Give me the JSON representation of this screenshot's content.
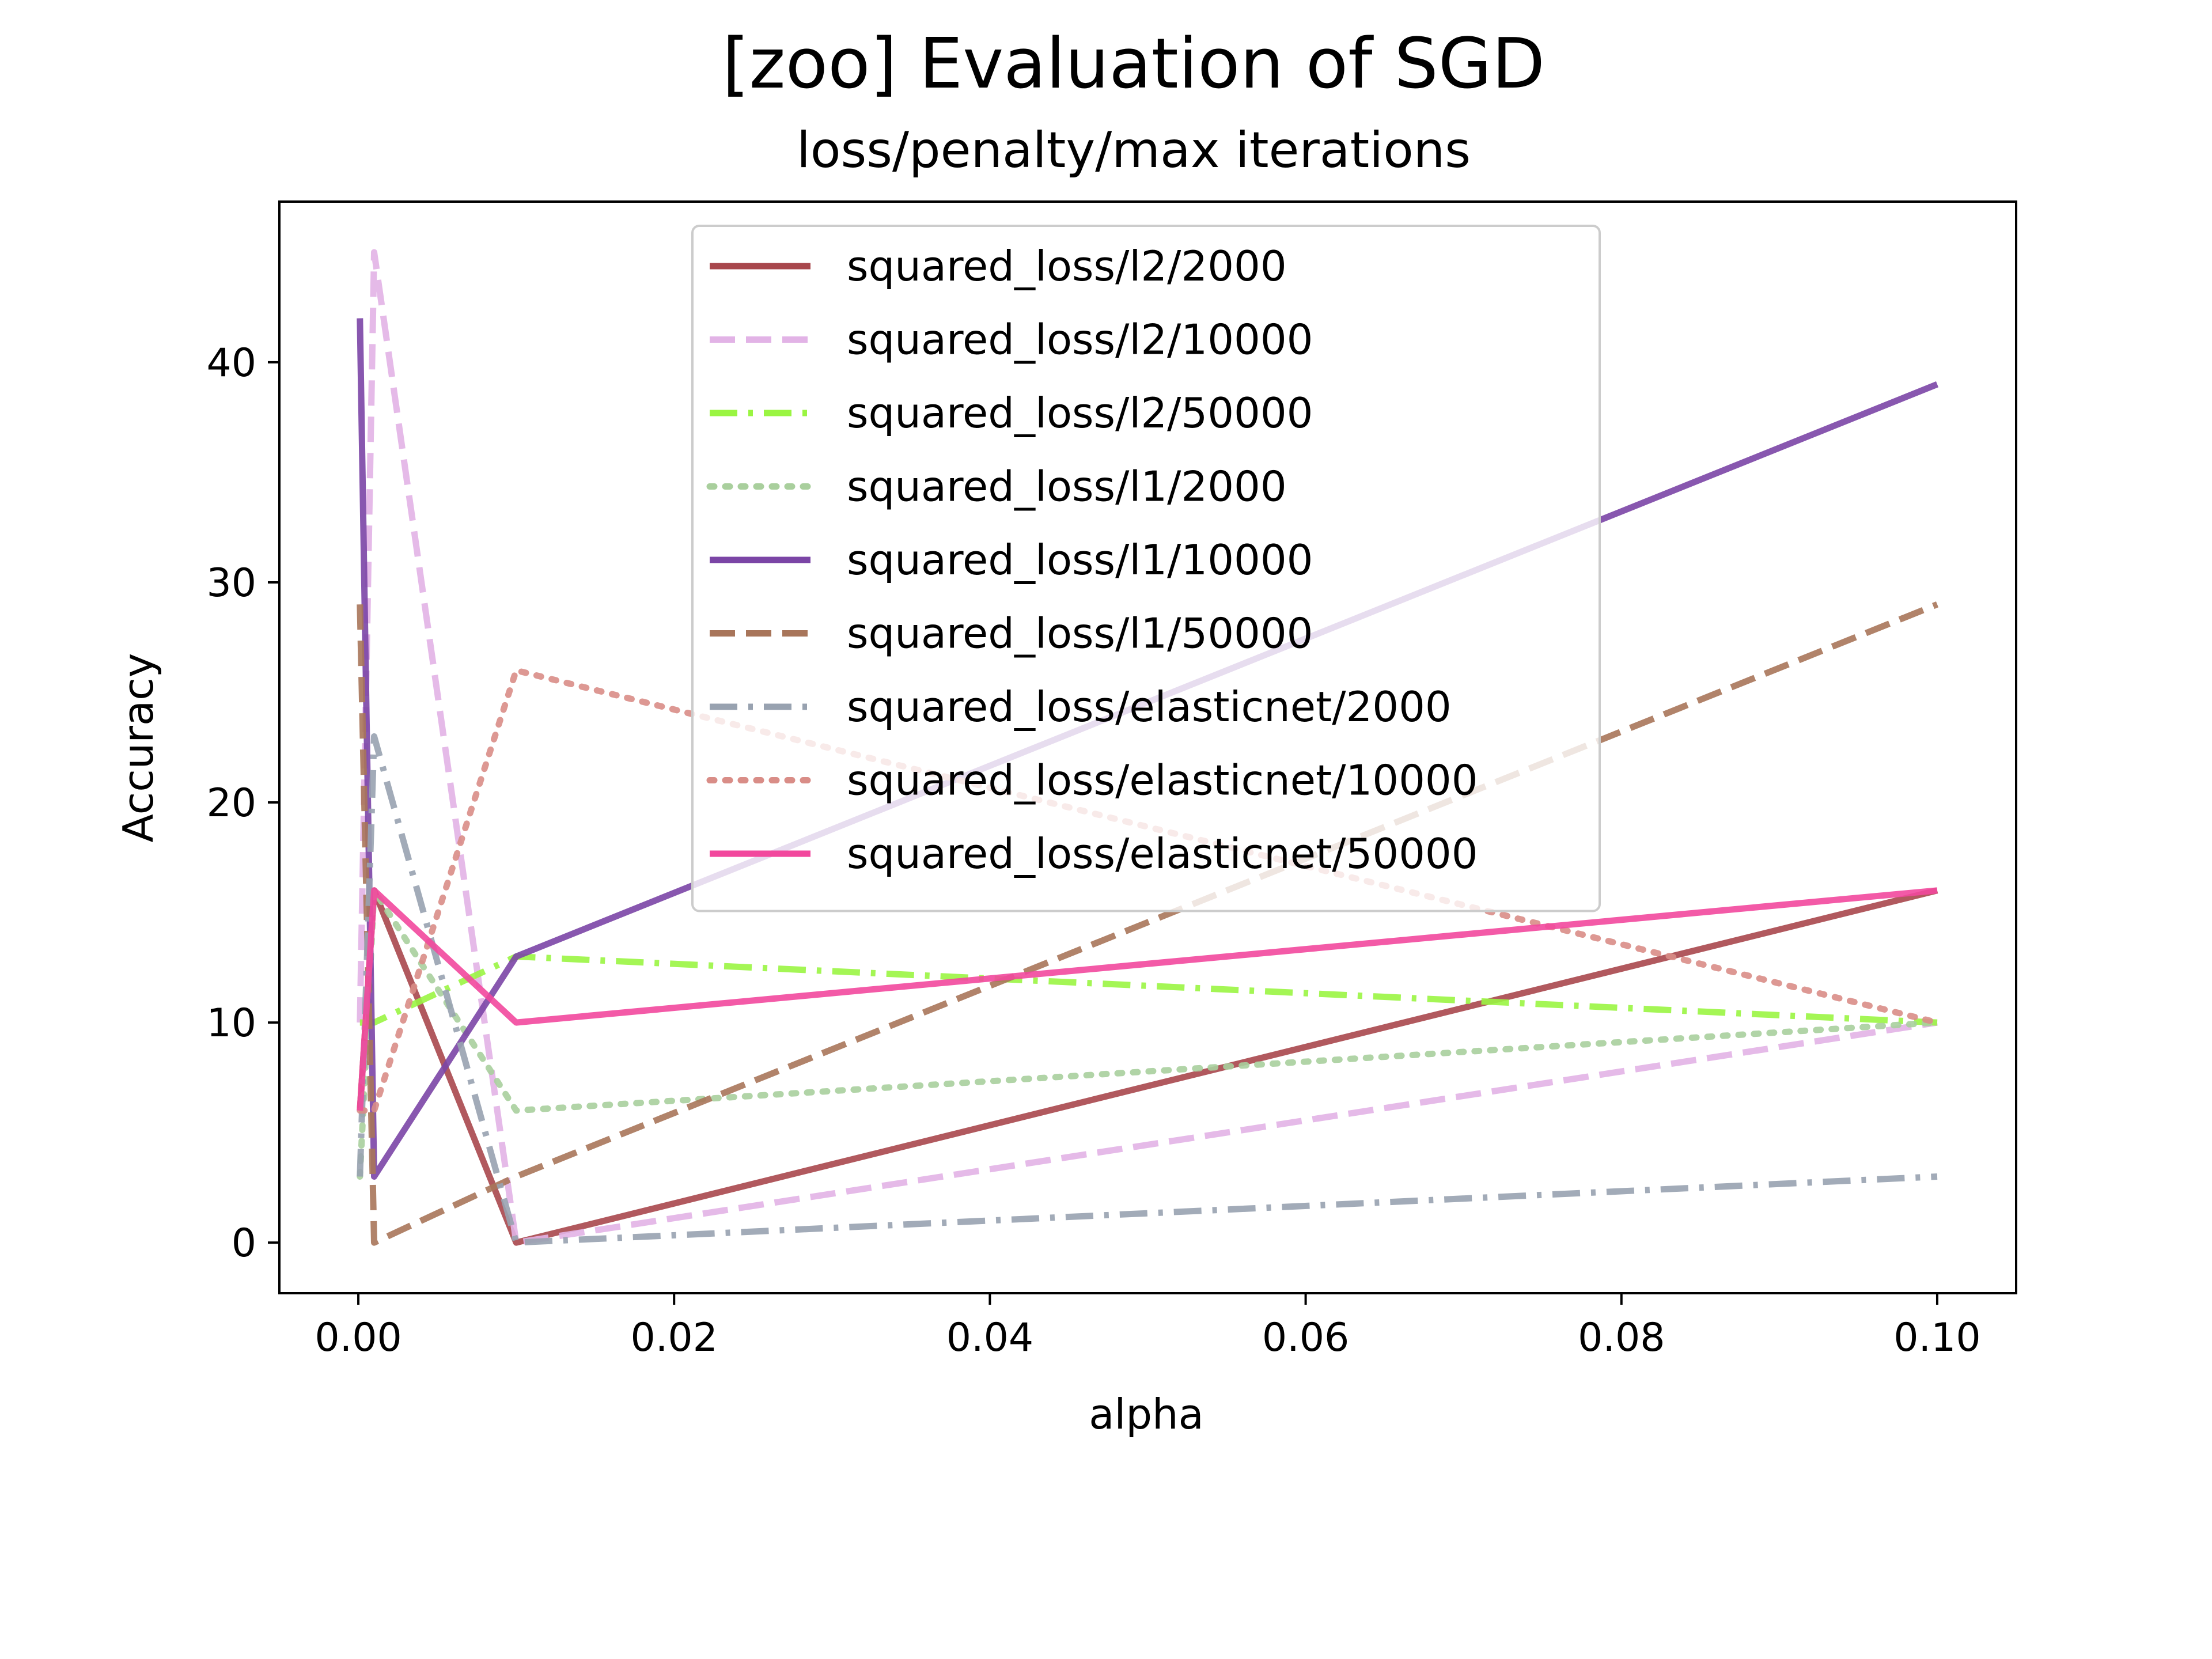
{
  "chart_data": {
    "type": "line",
    "title": "[zoo] Evaluation of SGD",
    "subtitle": "loss/penalty/max iterations",
    "xlabel": "alpha",
    "ylabel": "Accuracy",
    "xlim": [
      -0.005,
      0.105
    ],
    "ylim": [
      -2.3,
      47.3
    ],
    "xticks": [
      0.0,
      0.02,
      0.04,
      0.06,
      0.08,
      0.1
    ],
    "xtick_labels": [
      "0.00",
      "0.02",
      "0.04",
      "0.06",
      "0.08",
      "0.10"
    ],
    "yticks": [
      0,
      10,
      20,
      30,
      40
    ],
    "ytick_labels": [
      "0",
      "10",
      "20",
      "30",
      "40"
    ],
    "grid": false,
    "legend_position": "top-center",
    "x": [
      0.0001,
      0.001,
      0.01,
      0.1
    ],
    "series": [
      {
        "name": "squared_loss/l2/2000",
        "values": [
          6,
          16,
          0,
          16
        ],
        "color": "#a8474c",
        "dash": "solid"
      },
      {
        "name": "squared_loss/l2/10000",
        "values": [
          10,
          45,
          0,
          10
        ],
        "color": "#e2b3e6",
        "dash": "dashed"
      },
      {
        "name": "squared_loss/l2/50000",
        "values": [
          10,
          10,
          13,
          10
        ],
        "color": "#9af542",
        "dash": "dashdot"
      },
      {
        "name": "squared_loss/l1/2000",
        "values": [
          3,
          16,
          6,
          10
        ],
        "color": "#a9cf9d",
        "dash": "dotted"
      },
      {
        "name": "squared_loss/l1/10000",
        "values": [
          42,
          3,
          13,
          39
        ],
        "color": "#7b45a6",
        "dash": "solid"
      },
      {
        "name": "squared_loss/l1/50000",
        "values": [
          29,
          0,
          3,
          29
        ],
        "color": "#a8755a",
        "dash": "dashed"
      },
      {
        "name": "squared_loss/elasticnet/2000",
        "values": [
          3,
          23,
          0,
          3
        ],
        "color": "#98a2b0",
        "dash": "dashdot"
      },
      {
        "name": "squared_loss/elasticnet/10000",
        "values": [
          6,
          6,
          26,
          10
        ],
        "color": "#d98d87",
        "dash": "dotted"
      },
      {
        "name": "squared_loss/elasticnet/50000",
        "values": [
          6,
          16,
          10,
          16
        ],
        "color": "#f2489d",
        "dash": "solid"
      }
    ]
  }
}
